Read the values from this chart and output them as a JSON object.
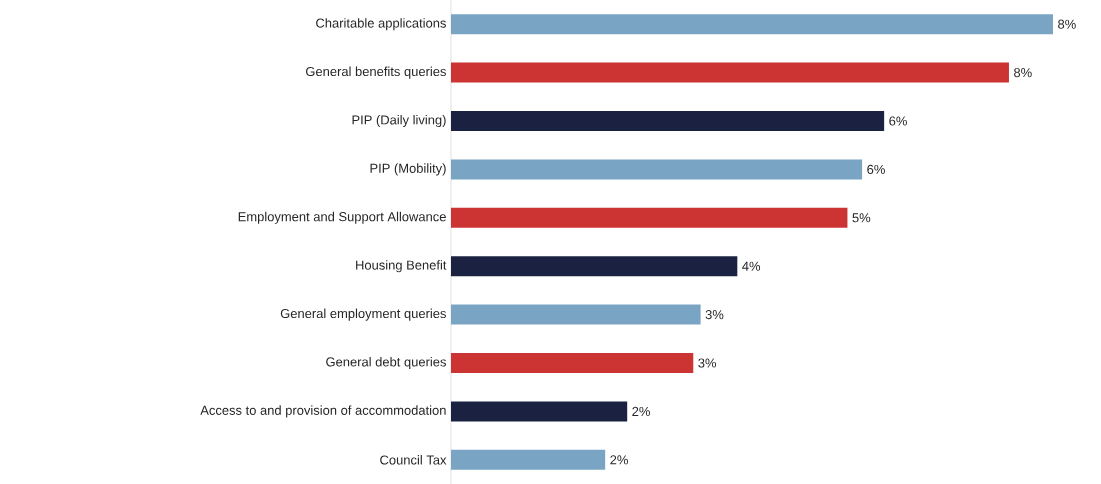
{
  "chart_data": {
    "type": "bar",
    "orientation": "horizontal",
    "categories": [
      "Charitable applications",
      "General benefits queries",
      "PIP (Daily living)",
      "PIP (Mobility)",
      "Employment and Support Allowance",
      "Housing Benefit",
      "General employment queries",
      "General debt queries",
      "Access to and provision of accommodation",
      "Council Tax"
    ],
    "values": [
      8.2,
      7.6,
      5.9,
      5.6,
      5.4,
      3.9,
      3.4,
      3.3,
      2.4,
      2.1
    ],
    "value_labels": [
      "8%",
      "8%",
      "6%",
      "6%",
      "5%",
      "4%",
      "3%",
      "3%",
      "2%",
      "2%"
    ],
    "colors": [
      "#7aa4c4",
      "#cc3333",
      "#1b2241",
      "#7aa4c4",
      "#cc3333",
      "#1b2241",
      "#7aa4c4",
      "#cc3333",
      "#1b2241",
      "#7aa4c4"
    ]
  }
}
